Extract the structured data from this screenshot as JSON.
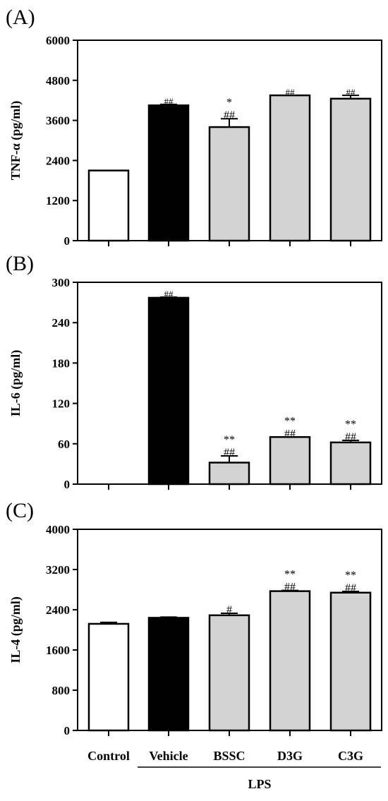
{
  "chart_data": [
    {
      "type": "bar",
      "panel_label": "(A)",
      "ylabel": "TNF-α (pg/ml)",
      "ylim": [
        0,
        6000
      ],
      "yticks": [
        0,
        1200,
        2400,
        3600,
        4800,
        6000
      ],
      "categories": [
        "Control",
        "Vehicle",
        "BSSC",
        "D3G",
        "C3G"
      ],
      "values": [
        2100,
        4050,
        3400,
        4350,
        4250
      ],
      "error": [
        0,
        30,
        250,
        0,
        100
      ],
      "colors": [
        "#ffffff",
        "#000000",
        "#d3d3d3",
        "#d3d3d3",
        "#d3d3d3"
      ],
      "annotations": [
        [],
        [
          "##"
        ],
        [
          "*",
          "##"
        ],
        [
          "##"
        ],
        [
          "##"
        ]
      ]
    },
    {
      "type": "bar",
      "panel_label": "(B)",
      "ylabel": "IL-6 (pg/ml)",
      "ylim": [
        0,
        300
      ],
      "yticks": [
        0,
        60,
        120,
        180,
        240,
        300
      ],
      "categories": [
        "Control",
        "Vehicle",
        "BSSC",
        "D3G",
        "C3G"
      ],
      "values": [
        0,
        277,
        32,
        70,
        62
      ],
      "error": [
        0,
        1,
        10,
        0,
        3
      ],
      "colors": [
        "#ffffff",
        "#000000",
        "#d3d3d3",
        "#d3d3d3",
        "#d3d3d3"
      ],
      "annotations": [
        [],
        [
          "##"
        ],
        [
          "**",
          "##"
        ],
        [
          "**",
          "##"
        ],
        [
          "**",
          "##"
        ]
      ]
    },
    {
      "type": "bar",
      "panel_label": "(C)",
      "ylabel": "IL-4 (pg/ml)",
      "ylim": [
        0,
        4000
      ],
      "yticks": [
        0,
        800,
        1600,
        2400,
        3200,
        4000
      ],
      "categories": [
        "Control",
        "Vehicle",
        "BSSC",
        "D3G",
        "C3G"
      ],
      "values": [
        2120,
        2240,
        2290,
        2770,
        2740
      ],
      "error": [
        30,
        15,
        40,
        15,
        25
      ],
      "colors": [
        "#ffffff",
        "#000000",
        "#d3d3d3",
        "#d3d3d3",
        "#d3d3d3"
      ],
      "annotations": [
        [],
        [],
        [
          "#"
        ],
        [
          "**",
          "##"
        ],
        [
          "**",
          "##"
        ]
      ],
      "xcategory_labels": [
        "Control",
        "Vehicle",
        "BSSC",
        "D3G",
        "C3G"
      ],
      "group_label": "LPS"
    }
  ]
}
